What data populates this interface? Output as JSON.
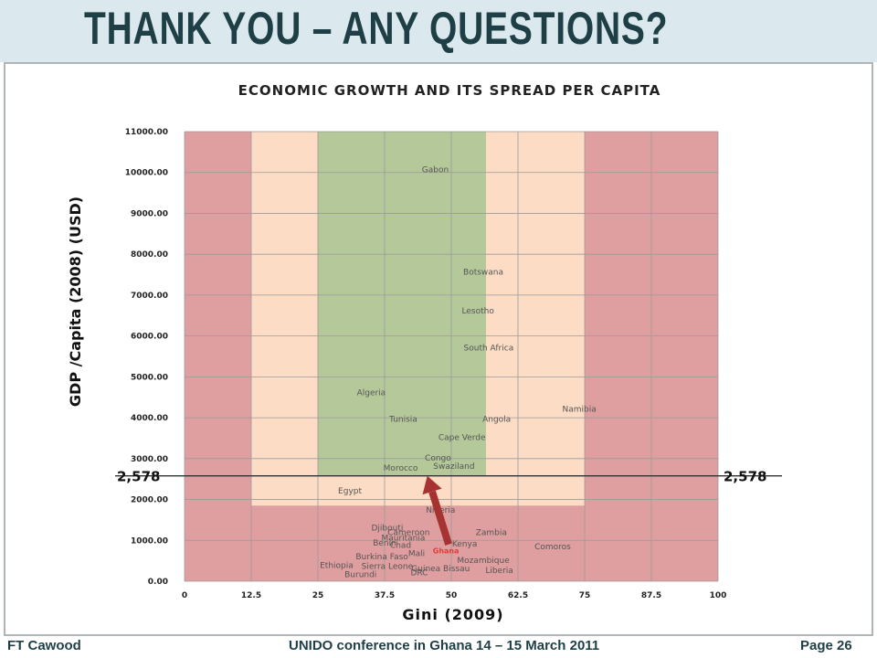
{
  "slide": {
    "title": "THANK YOU – ANY QUESTIONS?",
    "footer_left": "FT Cawood",
    "footer_center": "UNIDO conference in Ghana 14 – 15 March 2011",
    "footer_right": "Page 26"
  },
  "colors": {
    "red_zone": "#df9e9f",
    "peach_zone": "#fcdcc4",
    "green_zone": "#b4c89a",
    "arrow": "#a63232",
    "ghana_label": "#e23c3c",
    "title": "#1f3f46"
  },
  "chart_data": {
    "type": "scatter",
    "title": "ECONOMIC GROWTH AND ITS SPREAD PER CAPITA",
    "xlabel": "Gini (2009)",
    "ylabel": "GDP /Capita (2008) (USD)",
    "xlim": [
      0,
      100
    ],
    "ylim": [
      0,
      11000
    ],
    "xticks": [
      "0",
      "12.5",
      "25",
      "37.5",
      "50",
      "62.5",
      "75",
      "87.5",
      "100"
    ],
    "yticks": [
      "0.00",
      "1000.00",
      "2000.00",
      "3000.00",
      "4000.00",
      "5000.00",
      "6000.00",
      "7000.00",
      "8000.00",
      "9000.00",
      "10000.00",
      "11000.00"
    ],
    "grid": true,
    "zones": [
      {
        "color": "red",
        "x": [
          0,
          100
        ],
        "y": [
          0,
          11000
        ]
      },
      {
        "color": "peach",
        "x": [
          12.5,
          75
        ],
        "y": [
          1850,
          11000
        ]
      },
      {
        "color": "green",
        "x": [
          25,
          56.5
        ],
        "y": [
          2578,
          11000
        ]
      }
    ],
    "reference_line": {
      "y": 2578,
      "label_left": "2,578",
      "label_right": "2,578"
    },
    "points": [
      {
        "label": "Gabon",
        "x": 47,
        "y": 10000
      },
      {
        "label": "Botswana",
        "x": 56,
        "y": 7500
      },
      {
        "label": "Lesotho",
        "x": 55,
        "y": 6550
      },
      {
        "label": "South Africa",
        "x": 57,
        "y": 5650
      },
      {
        "label": "Algeria",
        "x": 35,
        "y": 4550
      },
      {
        "label": "Tunisia",
        "x": 41,
        "y": 3900
      },
      {
        "label": "Angola",
        "x": 58.5,
        "y": 3900
      },
      {
        "label": "Namibia",
        "x": 74,
        "y": 4150
      },
      {
        "label": "Cape Verde",
        "x": 52,
        "y": 3450
      },
      {
        "label": "Congo",
        "x": 47.5,
        "y": 2950
      },
      {
        "label": "Swaziland",
        "x": 50.5,
        "y": 2750
      },
      {
        "label": "Morocco",
        "x": 40.5,
        "y": 2700
      },
      {
        "label": "Egypt",
        "x": 31,
        "y": 2150
      },
      {
        "label": "Nigeria",
        "x": 48,
        "y": 1680
      },
      {
        "label": "Djibouti",
        "x": 38,
        "y": 1240
      },
      {
        "label": "Cameroon",
        "x": 42,
        "y": 1130
      },
      {
        "label": "Zambia",
        "x": 57.5,
        "y": 1130
      },
      {
        "label": "Mauritania",
        "x": 41,
        "y": 1000
      },
      {
        "label": "Kenya",
        "x": 52.5,
        "y": 850
      },
      {
        "label": "Benin",
        "x": 37.5,
        "y": 870
      },
      {
        "label": "Chad",
        "x": 40.5,
        "y": 820
      },
      {
        "label": "Comoros",
        "x": 69,
        "y": 780
      },
      {
        "label": "Ghana",
        "x": 49,
        "y": 680
      },
      {
        "label": "Mali",
        "x": 43.5,
        "y": 620
      },
      {
        "label": "Burkina Faso",
        "x": 37,
        "y": 540
      },
      {
        "label": "Mozambique",
        "x": 56,
        "y": 450
      },
      {
        "label": "Ethiopia",
        "x": 28.5,
        "y": 320
      },
      {
        "label": "Sierra Leone",
        "x": 38,
        "y": 300
      },
      {
        "label": "Guinea Bissau",
        "x": 48,
        "y": 250
      },
      {
        "label": "Liberia",
        "x": 59,
        "y": 200
      },
      {
        "label": "DRC",
        "x": 44,
        "y": 150
      },
      {
        "label": "Burundi",
        "x": 33,
        "y": 100
      }
    ],
    "annotation": {
      "label": "Ghana",
      "arrow_to": {
        "x": 45.5,
        "y": 2578
      },
      "arrow_from": {
        "x": 49.5,
        "y": 900
      }
    }
  }
}
